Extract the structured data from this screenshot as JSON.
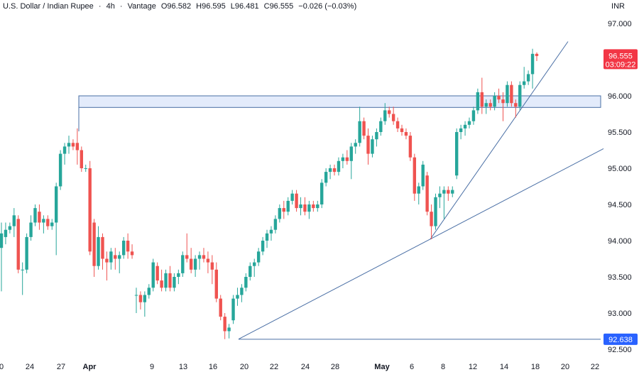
{
  "header": {
    "symbol": "U.S. Dollar / Indian Rupee",
    "interval": "4h",
    "source": "Vantage",
    "open": "O96.582",
    "high": "H96.595",
    "low": "L96.481",
    "close": "C96.555",
    "change": "−0.026 (−0.03%)",
    "separator": "·",
    "currency": "INR"
  },
  "colors": {
    "up": "#26a69a",
    "down": "#ef5350",
    "line": "#4a6fa5",
    "zone_fill": "#e3ebfb",
    "tag_red": "#f23645",
    "tag_blue": "#2962ff"
  },
  "chart_data": {
    "type": "candlestick",
    "y_ticks": [
      "97.000",
      "96.500",
      "96.000",
      "95.500",
      "95.000",
      "94.500",
      "94.000",
      "93.500",
      "93.000",
      "92.500"
    ],
    "ylim": [
      92.45,
      97.2
    ],
    "x_ticks": [
      "0",
      "24",
      "27",
      "Apr",
      "9",
      "13",
      "16",
      "20",
      "22",
      "24",
      "28",
      "May",
      "6",
      "8",
      "12",
      "14",
      "18",
      "20",
      "22"
    ],
    "last_price": "96.555",
    "countdown": "03:09:22",
    "low_level": "92.638",
    "resistance_zone": [
      95.84,
      96.0
    ],
    "trendlines": [
      {
        "from": [
          "19",
          92.64
        ],
        "to": [
          "22+",
          95.27
        ]
      },
      {
        "from": [
          "7",
          94.02
        ],
        "to": [
          "20",
          96.75
        ]
      }
    ],
    "candles": [
      [
        93.9,
        94.25,
        93.3,
        94.1
      ],
      [
        94.05,
        94.25,
        93.95,
        94.15
      ],
      [
        94.15,
        94.25,
        94.1,
        94.2
      ],
      [
        94.2,
        94.45,
        94.05,
        94.35
      ],
      [
        94.3,
        94.35,
        93.55,
        93.6
      ],
      [
        93.6,
        93.7,
        93.25,
        93.6
      ],
      [
        93.6,
        94.1,
        93.55,
        94.05
      ],
      [
        94.05,
        94.35,
        94.0,
        94.25
      ],
      [
        94.25,
        94.5,
        94.2,
        94.45
      ],
      [
        94.4,
        94.5,
        94.15,
        94.25
      ],
      [
        94.25,
        94.35,
        94.1,
        94.3
      ],
      [
        94.3,
        94.35,
        94.15,
        94.2
      ],
      [
        94.2,
        94.3,
        94.15,
        94.25
      ],
      [
        94.25,
        94.8,
        93.8,
        94.75
      ],
      [
        94.75,
        95.25,
        94.7,
        95.2
      ],
      [
        95.2,
        95.35,
        95.05,
        95.3
      ],
      [
        95.3,
        95.45,
        95.2,
        95.35
      ],
      [
        95.35,
        95.4,
        95.25,
        95.3
      ],
      [
        95.35,
        95.55,
        95.05,
        95.25
      ],
      [
        95.25,
        95.3,
        94.95,
        95.0
      ],
      [
        95.0,
        95.05,
        94.95,
        95.0
      ],
      [
        95.0,
        95.1,
        93.8,
        93.85
      ],
      [
        94.25,
        94.3,
        93.5,
        93.65
      ],
      [
        93.65,
        94.2,
        93.6,
        94.05
      ],
      [
        94.05,
        94.1,
        93.6,
        93.75
      ],
      [
        93.75,
        93.85,
        93.45,
        93.7
      ],
      [
        93.7,
        93.9,
        93.6,
        93.85
      ],
      [
        93.8,
        93.9,
        93.6,
        93.75
      ],
      [
        93.75,
        93.85,
        93.55,
        93.8
      ],
      [
        93.8,
        94.05,
        93.75,
        94.0
      ],
      [
        94.0,
        94.1,
        93.75,
        93.85
      ],
      [
        93.85,
        93.95,
        93.75,
        93.8
      ],
      [
        93.25,
        93.35,
        93.0,
        93.25
      ],
      [
        93.25,
        93.3,
        93.05,
        93.15
      ],
      [
        93.15,
        93.3,
        92.95,
        93.25
      ],
      [
        93.25,
        93.4,
        93.2,
        93.35
      ],
      [
        93.35,
        93.75,
        93.3,
        93.7
      ],
      [
        93.65,
        93.7,
        93.4,
        93.45
      ],
      [
        93.45,
        93.6,
        93.3,
        93.35
      ],
      [
        93.35,
        93.6,
        93.3,
        93.55
      ],
      [
        93.55,
        93.65,
        93.3,
        93.35
      ],
      [
        93.35,
        93.55,
        93.3,
        93.5
      ],
      [
        93.5,
        93.6,
        93.4,
        93.55
      ],
      [
        93.55,
        93.85,
        93.5,
        93.8
      ],
      [
        93.8,
        94.1,
        93.7,
        93.75
      ],
      [
        93.75,
        93.9,
        93.55,
        93.6
      ],
      [
        93.6,
        93.8,
        93.5,
        93.75
      ],
      [
        93.75,
        93.85,
        93.6,
        93.8
      ],
      [
        93.8,
        93.9,
        93.7,
        93.75
      ],
      [
        93.75,
        93.85,
        93.55,
        93.7
      ],
      [
        93.7,
        93.8,
        93.4,
        93.6
      ],
      [
        93.6,
        93.7,
        93.15,
        93.2
      ],
      [
        93.2,
        93.25,
        92.9,
        92.95
      ],
      [
        92.95,
        93.0,
        92.64,
        92.75
      ],
      [
        92.75,
        92.85,
        92.65,
        92.8
      ],
      [
        92.9,
        93.25,
        92.85,
        93.2
      ],
      [
        93.2,
        93.35,
        93.1,
        93.25
      ],
      [
        93.25,
        93.4,
        93.15,
        93.35
      ],
      [
        93.35,
        93.55,
        93.3,
        93.5
      ],
      [
        93.5,
        93.7,
        93.45,
        93.65
      ],
      [
        93.65,
        93.75,
        93.5,
        93.7
      ],
      [
        93.7,
        93.9,
        93.65,
        93.85
      ],
      [
        93.85,
        94.05,
        93.8,
        94.0
      ],
      [
        94.0,
        94.15,
        93.9,
        94.1
      ],
      [
        94.1,
        94.2,
        94.0,
        94.15
      ],
      [
        94.15,
        94.35,
        94.1,
        94.3
      ],
      [
        94.3,
        94.5,
        94.25,
        94.45
      ],
      [
        94.45,
        94.55,
        94.3,
        94.4
      ],
      [
        94.4,
        94.6,
        94.35,
        94.55
      ],
      [
        94.55,
        94.7,
        94.5,
        94.65
      ],
      [
        94.65,
        94.7,
        94.4,
        94.45
      ],
      [
        94.45,
        94.6,
        94.35,
        94.5
      ],
      [
        94.5,
        94.6,
        94.35,
        94.4
      ],
      [
        94.4,
        94.55,
        94.3,
        94.5
      ],
      [
        94.5,
        94.55,
        94.4,
        94.45
      ],
      [
        94.45,
        94.55,
        94.4,
        94.5
      ],
      [
        94.5,
        94.85,
        94.45,
        94.8
      ],
      [
        94.8,
        95.0,
        94.75,
        94.95
      ],
      [
        94.95,
        95.05,
        94.85,
        95.0
      ],
      [
        95.0,
        95.05,
        94.9,
        94.95
      ],
      [
        94.95,
        95.15,
        94.9,
        95.1
      ],
      [
        95.1,
        95.2,
        95.0,
        95.15
      ],
      [
        95.15,
        95.25,
        95.05,
        95.1
      ],
      [
        95.1,
        95.35,
        94.85,
        95.3
      ],
      [
        95.3,
        95.4,
        95.2,
        95.35
      ],
      [
        95.35,
        95.85,
        95.3,
        95.65
      ],
      [
        95.65,
        95.7,
        95.4,
        95.45
      ],
      [
        95.45,
        95.55,
        95.05,
        95.2
      ],
      [
        95.2,
        95.45,
        95.15,
        95.4
      ],
      [
        95.4,
        95.55,
        95.3,
        95.5
      ],
      [
        95.5,
        95.7,
        95.45,
        95.65
      ],
      [
        95.65,
        95.9,
        95.6,
        95.8
      ],
      [
        95.8,
        95.85,
        95.7,
        95.75
      ],
      [
        95.75,
        95.85,
        95.6,
        95.65
      ],
      [
        95.65,
        95.7,
        95.5,
        95.55
      ],
      [
        95.55,
        95.6,
        95.45,
        95.5
      ],
      [
        95.5,
        95.55,
        95.4,
        95.45
      ],
      [
        95.45,
        95.5,
        95.1,
        95.15
      ],
      [
        95.15,
        95.2,
        94.55,
        94.65
      ],
      [
        94.65,
        94.8,
        94.5,
        94.75
      ],
      [
        94.75,
        95.1,
        94.7,
        95.05
      ],
      [
        94.9,
        94.95,
        94.35,
        94.4
      ],
      [
        94.4,
        94.5,
        94.02,
        94.2
      ],
      [
        94.2,
        94.65,
        94.15,
        94.6
      ],
      [
        94.6,
        94.75,
        94.45,
        94.65
      ],
      [
        94.65,
        94.75,
        94.3,
        94.7
      ],
      [
        94.7,
        94.75,
        94.55,
        94.65
      ],
      [
        94.65,
        94.75,
        94.6,
        94.7
      ],
      [
        94.9,
        95.55,
        94.85,
        95.5
      ],
      [
        95.5,
        95.6,
        95.4,
        95.55
      ],
      [
        95.55,
        95.65,
        95.45,
        95.6
      ],
      [
        95.6,
        95.7,
        95.55,
        95.65
      ],
      [
        95.65,
        95.85,
        95.6,
        95.8
      ],
      [
        95.8,
        96.1,
        95.75,
        96.05
      ],
      [
        96.05,
        96.25,
        95.75,
        95.85
      ],
      [
        95.85,
        95.95,
        95.75,
        95.9
      ],
      [
        95.9,
        95.95,
        95.8,
        95.85
      ],
      [
        95.85,
        96.05,
        95.8,
        96.0
      ],
      [
        96.0,
        96.1,
        95.9,
        95.95
      ],
      [
        95.95,
        96.05,
        95.65,
        95.9
      ],
      [
        95.9,
        96.2,
        95.85,
        96.15
      ],
      [
        96.15,
        96.2,
        95.85,
        95.9
      ],
      [
        95.9,
        95.95,
        95.7,
        95.85
      ],
      [
        95.85,
        96.2,
        95.8,
        96.15
      ],
      [
        96.15,
        96.4,
        96.1,
        96.2
      ],
      [
        96.2,
        96.35,
        96.15,
        96.3
      ],
      [
        96.3,
        96.65,
        96.1,
        96.58
      ],
      [
        96.58,
        96.6,
        96.48,
        96.55
      ]
    ]
  }
}
